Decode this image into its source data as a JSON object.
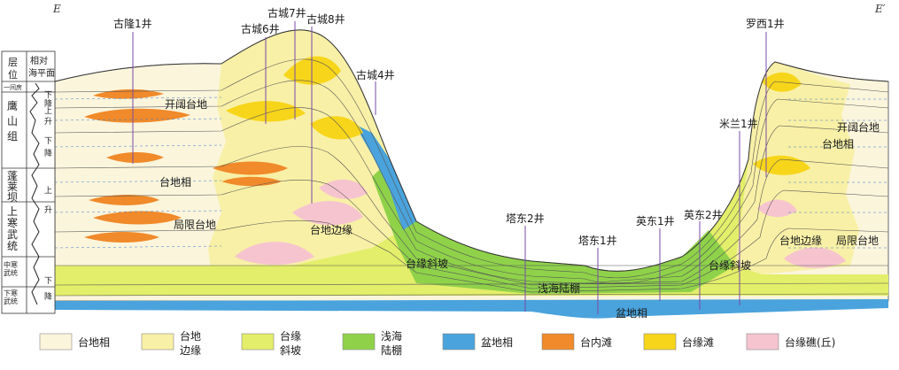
{
  "corners": {
    "left": "E",
    "right": "E′"
  },
  "left_axis": {
    "header_layer": "层\n位",
    "header_sea": "相对\n海平面",
    "units": [
      {
        "label": "一间房"
      },
      {
        "label": "鹰山组"
      },
      {
        "label": "蓬莱坝"
      },
      {
        "label": "上寒武统"
      },
      {
        "label": "中寒武统"
      },
      {
        "label": "下寒武统"
      }
    ],
    "sea_marks": [
      "下",
      "降",
      "上",
      "升",
      "下",
      "降",
      "上",
      "升",
      "下",
      "降"
    ]
  },
  "wells": [
    {
      "name": "古隆1井"
    },
    {
      "name": "古城6井"
    },
    {
      "name": "古城7井"
    },
    {
      "name": "古城8井"
    },
    {
      "name": "古城4井"
    },
    {
      "name": "塔东2井"
    },
    {
      "name": "塔东1井"
    },
    {
      "name": "英东1井"
    },
    {
      "name": "英东2井"
    },
    {
      "name": "米兰1井"
    },
    {
      "name": "罗西1井"
    }
  ],
  "region_labels": [
    {
      "text": "开阔台地"
    },
    {
      "text": "台地相"
    },
    {
      "text": "局限台地"
    },
    {
      "text": "台地边缘"
    },
    {
      "text": "台缘斜坡"
    },
    {
      "text": "浅海陆棚"
    },
    {
      "text": "盆地相"
    },
    {
      "text": "台缘斜坡"
    },
    {
      "text": "台地边缘"
    },
    {
      "text": "局限台地"
    },
    {
      "text": "开阔台地"
    },
    {
      "text": "台地相"
    }
  ],
  "legend": [
    {
      "label": "台地相",
      "color": "#fbf5dc"
    },
    {
      "label": "台地\n边缘",
      "color": "#f8f0a6"
    },
    {
      "label": "台缘\n斜坡",
      "color": "#e3ee6a"
    },
    {
      "label": "浅海\n陆棚",
      "color": "#8fd24a"
    },
    {
      "label": "盆地相",
      "color": "#4aa3dc"
    },
    {
      "label": "台内滩",
      "color": "#f08a2a"
    },
    {
      "label": "台缘滩",
      "color": "#f7d51a"
    },
    {
      "label": "台缘礁(丘)",
      "color": "#f6c4cf"
    }
  ]
}
